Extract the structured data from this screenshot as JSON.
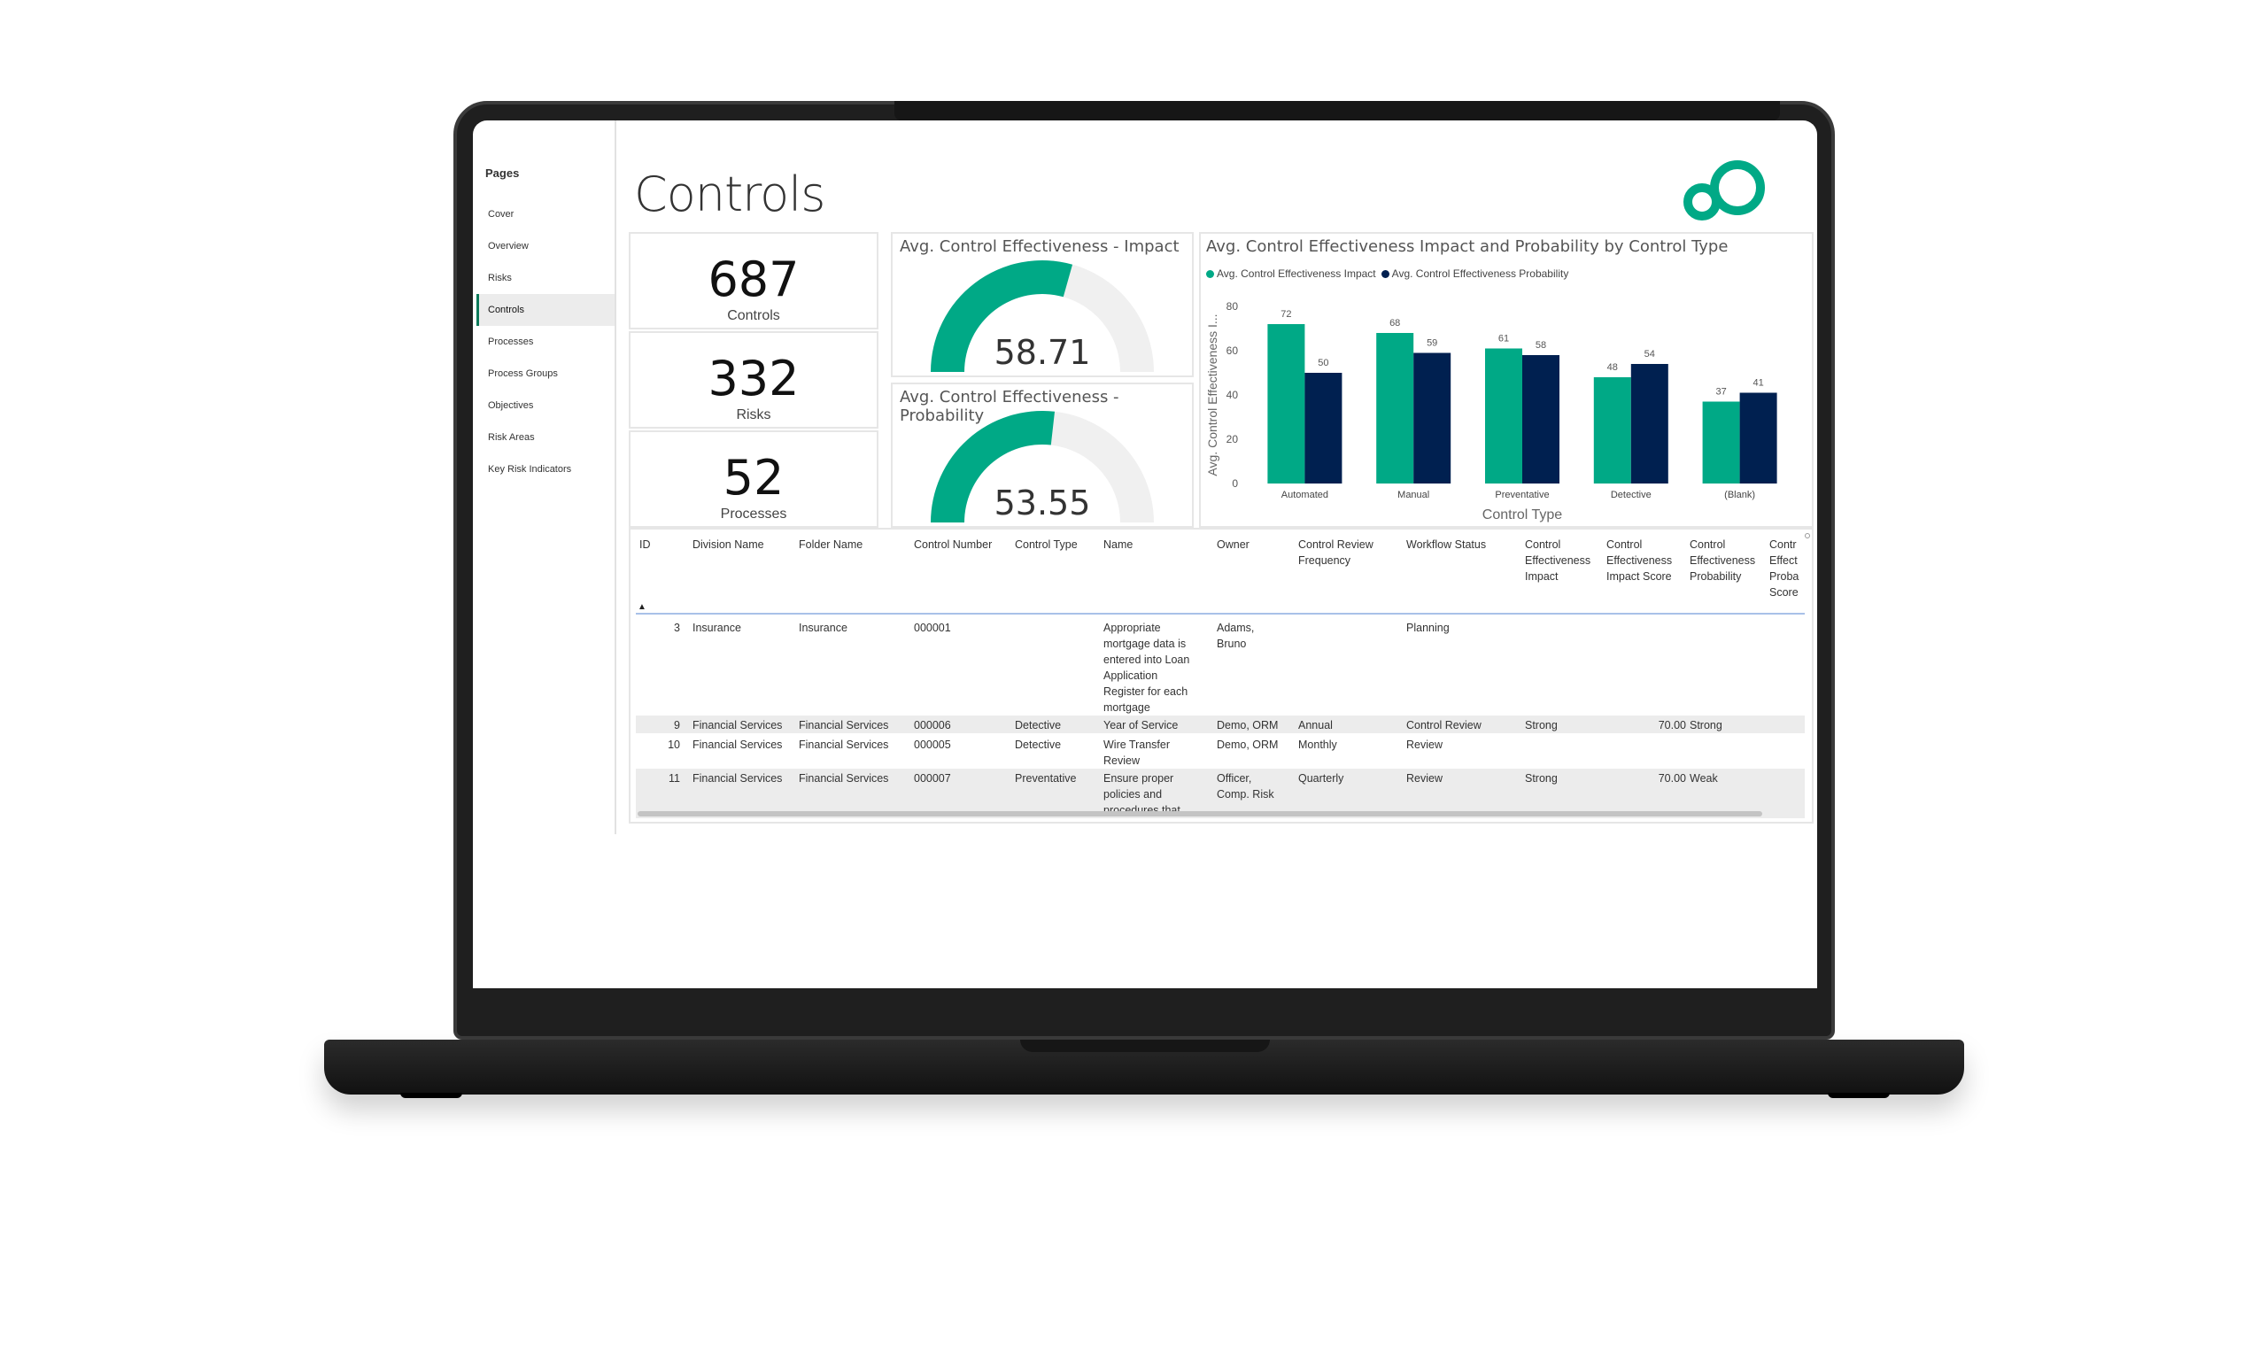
{
  "sidebar": {
    "title": "Pages",
    "items": [
      {
        "label": "Cover",
        "active": false
      },
      {
        "label": "Overview",
        "active": false
      },
      {
        "label": "Risks",
        "active": false
      },
      {
        "label": "Controls",
        "active": true
      },
      {
        "label": "Processes",
        "active": false
      },
      {
        "label": "Process Groups",
        "active": false
      },
      {
        "label": "Objectives",
        "active": false
      },
      {
        "label": "Risk Areas",
        "active": false
      },
      {
        "label": "Key Risk Indicators",
        "active": false
      }
    ]
  },
  "page": {
    "title": "Controls",
    "logo_icon": "infinity-loop-logo-icon"
  },
  "kpis": [
    {
      "value": "687",
      "label": "Controls"
    },
    {
      "value": "332",
      "label": "Risks"
    },
    {
      "value": "52",
      "label": "Processes"
    }
  ],
  "gauges": [
    {
      "title": "Avg. Control Effectiveness - Impact",
      "value": "58.71",
      "fraction": 0.5871
    },
    {
      "title": "Avg. Control Effectiveness - Probability",
      "value": "53.55",
      "fraction": 0.5355
    }
  ],
  "colors": {
    "accent": "#00A986",
    "navy": "#002050",
    "gauge_track": "#F0F0F0"
  },
  "chart_data": {
    "type": "bar",
    "title": "Avg. Control Effectiveness Impact and Probability by Control Type",
    "xlabel": "Control Type",
    "ylabel": "Avg. Control Effectiveness I...",
    "categories": [
      "Automated",
      "Manual",
      "Preventative",
      "Detective",
      "(Blank)"
    ],
    "series": [
      {
        "name": "Avg. Control Effectiveness Impact",
        "values": [
          72,
          68,
          61,
          48,
          37
        ],
        "color": "#00A986"
      },
      {
        "name": "Avg. Control Effectiveness Probability",
        "values": [
          50,
          59,
          58,
          54,
          41
        ],
        "color": "#002050"
      }
    ],
    "ylim": [
      0,
      80
    ],
    "yticks": [
      "0",
      "20",
      "40",
      "60",
      "80"
    ],
    "legend_position": "top-left",
    "grid": false
  },
  "table": {
    "columns": [
      [
        "ID"
      ],
      [
        "Division Name"
      ],
      [
        "Folder Name"
      ],
      [
        "Control Number"
      ],
      [
        "Control Type"
      ],
      [
        "Name"
      ],
      [
        "Owner"
      ],
      [
        "Control Review",
        "Frequency"
      ],
      [
        "Workflow Status"
      ],
      [
        "Control",
        "Effectiveness",
        "Impact"
      ],
      [
        "Control",
        "Effectiveness",
        "Impact Score"
      ],
      [
        "Control",
        "Effectiveness",
        "Probability"
      ],
      [
        "Contr",
        "Effect",
        "Proba",
        "Score"
      ]
    ],
    "rows": [
      {
        "cells": [
          [
            "3"
          ],
          [
            "Insurance"
          ],
          [
            "Insurance"
          ],
          [
            "000001"
          ],
          [
            ""
          ],
          [
            "Appropriate",
            "mortgage data is",
            "entered into Loan",
            "Application",
            "Register for each",
            "mortgage"
          ],
          [
            "Adams,",
            "Bruno"
          ],
          [
            ""
          ],
          [
            "Planning"
          ],
          [
            ""
          ],
          [
            ""
          ],
          [
            ""
          ],
          [
            ""
          ]
        ]
      },
      {
        "cells": [
          [
            "9"
          ],
          [
            "Financial Services"
          ],
          [
            "Financial Services"
          ],
          [
            "000006"
          ],
          [
            "Detective"
          ],
          [
            "Year of Service"
          ],
          [
            "Demo, ORM"
          ],
          [
            "Annual"
          ],
          [
            "Control Review"
          ],
          [
            "Strong"
          ],
          [
            "70.00"
          ],
          [
            "Strong"
          ],
          [
            ""
          ]
        ]
      },
      {
        "cells": [
          [
            "10"
          ],
          [
            "Financial Services"
          ],
          [
            "Financial Services"
          ],
          [
            "000005"
          ],
          [
            "Detective"
          ],
          [
            "Wire Transfer",
            "Review"
          ],
          [
            "Demo, ORM"
          ],
          [
            "Monthly"
          ],
          [
            "Review"
          ],
          [
            ""
          ],
          [
            ""
          ],
          [
            ""
          ],
          [
            ""
          ]
        ]
      },
      {
        "cells": [
          [
            "11"
          ],
          [
            "Financial Services"
          ],
          [
            "Financial Services"
          ],
          [
            "000007"
          ],
          [
            "Preventative"
          ],
          [
            "Ensure proper",
            "policies and",
            "procedures that"
          ],
          [
            "Officer,",
            "Comp. Risk"
          ],
          [
            "Quarterly"
          ],
          [
            "Review"
          ],
          [
            "Strong"
          ],
          [
            "70.00"
          ],
          [
            "Weak"
          ],
          [
            ""
          ]
        ]
      }
    ]
  }
}
